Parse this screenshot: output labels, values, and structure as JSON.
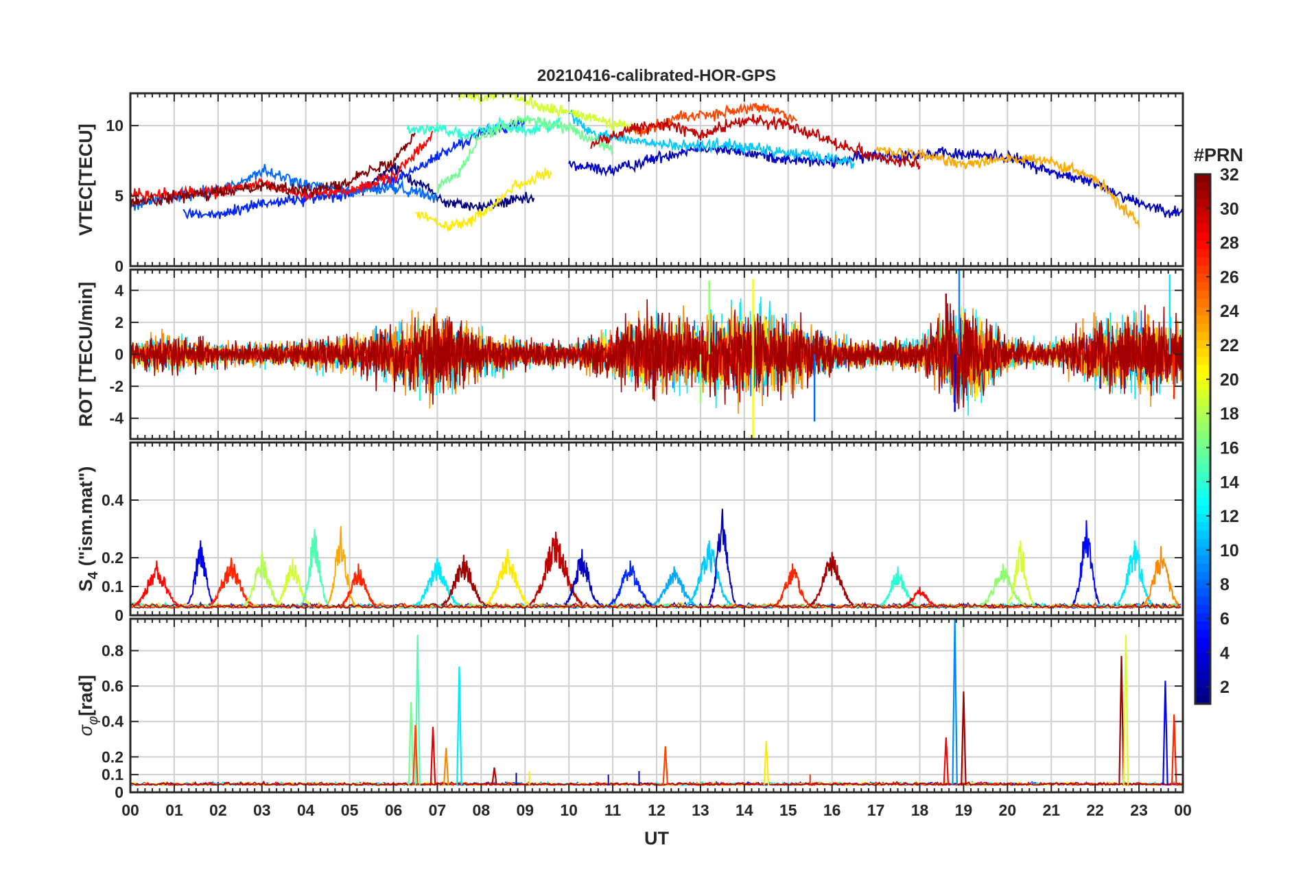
{
  "chart_data": [
    {
      "type": "line",
      "title": "20210416-calibrated-HOR-GPS",
      "ylabel": "VTEC[TECU]",
      "xlim": [
        0,
        24
      ],
      "ylim": [
        0,
        12.3
      ],
      "yticks": [
        0,
        5,
        10
      ],
      "grid": true,
      "series_note": "one trace per GPS PRN (1-32), colored by PRN",
      "series": [
        {
          "name": "PRN 1",
          "prn": 1,
          "x": [
            5.3,
            6,
            6.8,
            7.2,
            8,
            8.6,
            9.2
          ],
          "y": [
            5.4,
            7,
            5.5,
            4.5,
            4.2,
            4.6,
            4.8
          ]
        },
        {
          "name": "PRN 3",
          "prn": 3,
          "x": [
            10,
            11,
            12,
            13,
            14,
            15,
            16,
            17,
            18.5,
            20,
            21,
            22,
            23,
            24
          ],
          "y": [
            7.2,
            6.8,
            7.7,
            8.5,
            8.1,
            7.6,
            7.4,
            7.9,
            8.0,
            7.8,
            6.7,
            5.9,
            4.5,
            3.7
          ]
        },
        {
          "name": "PRN 6",
          "prn": 6,
          "x": [
            1.2,
            2,
            3,
            4,
            5,
            6,
            7,
            8,
            9
          ],
          "y": [
            3.8,
            3.6,
            4.5,
            4.8,
            5.2,
            6,
            7.8,
            9.5,
            10.2
          ]
        },
        {
          "name": "PRN 8",
          "prn": 8,
          "x": [
            0,
            0.8,
            1.5,
            2.3,
            3,
            4,
            5,
            6,
            7
          ],
          "y": [
            4.3,
            4.8,
            5.2,
            5.6,
            6.8,
            5.8,
            5.3,
            5.6,
            5.0
          ]
        },
        {
          "name": "PRN 11",
          "prn": 11,
          "x": [
            10,
            10.5,
            11.5,
            12.5,
            13.5,
            14.5,
            15.5,
            16.5
          ],
          "y": [
            10.8,
            9.5,
            8.9,
            8.5,
            8.7,
            8.2,
            7.9,
            7.4
          ]
        },
        {
          "name": "PRN 14",
          "prn": 14,
          "x": [
            6.3,
            7,
            7.7,
            8.4,
            9.1,
            9.8
          ],
          "y": [
            9.6,
            9.9,
            9.2,
            10.1,
            9.6,
            10.3
          ]
        },
        {
          "name": "PRN 16",
          "prn": 16,
          "x": [
            7,
            7.5,
            8,
            9,
            10,
            11
          ],
          "y": [
            5.5,
            6.8,
            9.3,
            10.5,
            9.8,
            8.4
          ]
        },
        {
          "name": "PRN 19",
          "prn": 19,
          "x": [
            7.5,
            8,
            8.5,
            9.5,
            10.5,
            11.5
          ],
          "y": [
            12.2,
            12.0,
            12.3,
            11.2,
            10.6,
            9.8
          ]
        },
        {
          "name": "PRN 21",
          "prn": 21,
          "x": [
            6.5,
            7.3,
            8,
            8.8,
            9.6
          ],
          "y": [
            3.8,
            2.7,
            3.6,
            5.8,
            6.6
          ]
        },
        {
          "name": "PRN 23",
          "prn": 23,
          "x": [
            17,
            18,
            19,
            20,
            21,
            22,
            23
          ],
          "y": [
            8.2,
            7.9,
            7.3,
            7.7,
            7.4,
            6.2,
            3.0
          ]
        },
        {
          "name": "PRN 26",
          "prn": 26,
          "x": [
            11.5,
            12.5,
            13.5,
            14.5,
            15.2
          ],
          "y": [
            9.5,
            10.6,
            10.9,
            11.3,
            10.5
          ]
        },
        {
          "name": "PRN 28",
          "prn": 28,
          "x": [
            0,
            1,
            2,
            3,
            4,
            5,
            6,
            6.9
          ],
          "y": [
            5.0,
            5.2,
            5.3,
            5.8,
            5.1,
            5.4,
            6.3,
            9.4
          ]
        },
        {
          "name": "PRN 30",
          "prn": 30,
          "x": [
            10.5,
            11.5,
            12.3,
            13,
            14,
            15,
            16,
            17,
            18
          ],
          "y": [
            8.7,
            9.8,
            10.1,
            9.3,
            10.4,
            10.1,
            8.9,
            7.8,
            7.2
          ]
        },
        {
          "name": "PRN 32",
          "prn": 32,
          "x": [
            0,
            1,
            2,
            3,
            4,
            5,
            6,
            6.5
          ],
          "y": [
            4.5,
            4.9,
            5.2,
            5.8,
            5.3,
            6.1,
            7.5,
            9.6
          ]
        }
      ]
    },
    {
      "type": "line",
      "ylabel": "ROT [TECU/min]",
      "xlim": [
        0,
        24
      ],
      "ylim": [
        -5.3,
        5.3
      ],
      "yticks": [
        -4,
        -2,
        0,
        2,
        4
      ],
      "grid": true,
      "envelope_note": "approximate absolute-amplitude envelope of ROT fluctuations per hour, all PRNs",
      "hours": [
        0,
        1,
        2,
        3,
        4,
        5,
        6,
        7,
        8,
        9,
        10,
        11,
        12,
        13,
        14,
        15,
        16,
        17,
        18,
        19,
        20,
        21,
        22,
        23,
        24
      ],
      "amplitude": [
        0.8,
        1.0,
        0.6,
        0.6,
        0.7,
        1.0,
        1.6,
        2.2,
        1.2,
        0.8,
        0.6,
        1.4,
        2.3,
        1.8,
        2.6,
        2.0,
        1.0,
        0.6,
        0.9,
        3.2,
        0.8,
        0.6,
        1.8,
        2.2,
        1.5
      ],
      "spikes": [
        {
          "x": 13.2,
          "y": 4.6,
          "prn": 17
        },
        {
          "x": 14.2,
          "y": 4.7,
          "prn": 20
        },
        {
          "x": 14.2,
          "y": -5.3,
          "prn": 20
        },
        {
          "x": 15.6,
          "y": -4.2,
          "prn": 8
        },
        {
          "x": 18.9,
          "y": 5.3,
          "prn": 9
        },
        {
          "x": 18.6,
          "y": 3.8,
          "prn": 31
        },
        {
          "x": 18.8,
          "y": -3.6,
          "prn": 4
        },
        {
          "x": 23.7,
          "y": 5.0,
          "prn": 12
        },
        {
          "x": 23.8,
          "y": -2.8,
          "prn": 27
        },
        {
          "x": 6.6,
          "y": -2.9,
          "prn": 14
        },
        {
          "x": 13.0,
          "y": -3.1,
          "prn": 17
        }
      ]
    },
    {
      "type": "line",
      "ylabel": "S4 (\"ism.mat\")",
      "ylabel_main": "S",
      "ylabel_sub": "4",
      "ylabel_rest": "(\"ism.mat\")",
      "xlim": [
        0,
        24
      ],
      "ylim": [
        0,
        0.6
      ],
      "yticks": [
        0,
        0.1,
        0.2,
        0.4
      ],
      "grid": true,
      "baseline_note": "background level ~0.02-0.05 for all PRNs",
      "bursts": [
        {
          "center": 0.6,
          "width": 0.5,
          "peak": 0.19,
          "prn": 28
        },
        {
          "center": 1.6,
          "width": 0.3,
          "peak": 0.26,
          "prn": 4
        },
        {
          "center": 2.3,
          "width": 0.5,
          "peak": 0.2,
          "prn": 27
        },
        {
          "center": 3.0,
          "width": 0.4,
          "peak": 0.22,
          "prn": 18
        },
        {
          "center": 3.7,
          "width": 0.4,
          "peak": 0.2,
          "prn": 19
        },
        {
          "center": 4.2,
          "width": 0.3,
          "peak": 0.3,
          "prn": 15
        },
        {
          "center": 4.8,
          "width": 0.3,
          "peak": 0.31,
          "prn": 23
        },
        {
          "center": 5.2,
          "width": 0.4,
          "peak": 0.18,
          "prn": 27
        },
        {
          "center": 7.0,
          "width": 0.5,
          "peak": 0.2,
          "prn": 12
        },
        {
          "center": 7.6,
          "width": 0.5,
          "peak": 0.21,
          "prn": 31
        },
        {
          "center": 8.6,
          "width": 0.5,
          "peak": 0.23,
          "prn": 21
        },
        {
          "center": 9.7,
          "width": 0.6,
          "peak": 0.29,
          "prn": 30
        },
        {
          "center": 10.3,
          "width": 0.4,
          "peak": 0.23,
          "prn": 3
        },
        {
          "center": 11.4,
          "width": 0.5,
          "peak": 0.19,
          "prn": 6
        },
        {
          "center": 12.4,
          "width": 0.5,
          "peak": 0.17,
          "prn": 10
        },
        {
          "center": 13.2,
          "width": 0.5,
          "peak": 0.26,
          "prn": 11
        },
        {
          "center": 13.5,
          "width": 0.3,
          "peak": 0.37,
          "prn": 3
        },
        {
          "center": 15.1,
          "width": 0.4,
          "peak": 0.18,
          "prn": 27
        },
        {
          "center": 16.0,
          "width": 0.5,
          "peak": 0.22,
          "prn": 31
        },
        {
          "center": 17.5,
          "width": 0.4,
          "peak": 0.17,
          "prn": 14
        },
        {
          "center": 18.0,
          "width": 0.4,
          "peak": 0.1,
          "prn": 28
        },
        {
          "center": 19.9,
          "width": 0.5,
          "peak": 0.18,
          "prn": 17
        },
        {
          "center": 20.3,
          "width": 0.3,
          "peak": 0.26,
          "prn": 19
        },
        {
          "center": 21.8,
          "width": 0.3,
          "peak": 0.33,
          "prn": 5
        },
        {
          "center": 22.9,
          "width": 0.4,
          "peak": 0.26,
          "prn": 12
        },
        {
          "center": 23.5,
          "width": 0.4,
          "peak": 0.24,
          "prn": 24
        }
      ]
    },
    {
      "type": "line",
      "ylabel": "σφ[rad]",
      "ylabel_main": "σ",
      "ylabel_sub": "φ",
      "ylabel_rest": "[rad]",
      "xlim": [
        0,
        24
      ],
      "ylim": [
        0,
        0.98
      ],
      "yticks": [
        0,
        0.1,
        0.2,
        0.4,
        0.6,
        0.8
      ],
      "grid": true,
      "xlabel": "UT",
      "xticklabels": [
        "00",
        "01",
        "02",
        "03",
        "04",
        "05",
        "06",
        "07",
        "08",
        "09",
        "10",
        "11",
        "12",
        "13",
        "14",
        "15",
        "16",
        "17",
        "18",
        "19",
        "20",
        "21",
        "22",
        "23",
        "00"
      ],
      "baseline_note": "background level ~0.03-0.05 for all PRNs",
      "spikes": [
        {
          "x": 6.4,
          "y": 0.51,
          "prn": 16
        },
        {
          "x": 6.55,
          "y": 0.89,
          "prn": 15
        },
        {
          "x": 6.5,
          "y": 0.38,
          "prn": 26
        },
        {
          "x": 6.9,
          "y": 0.37,
          "prn": 29
        },
        {
          "x": 7.5,
          "y": 0.71,
          "prn": 12
        },
        {
          "x": 7.2,
          "y": 0.25,
          "prn": 24
        },
        {
          "x": 8.3,
          "y": 0.14,
          "prn": 30
        },
        {
          "x": 12.2,
          "y": 0.26,
          "prn": 26
        },
        {
          "x": 14.5,
          "y": 0.29,
          "prn": 21
        },
        {
          "x": 18.6,
          "y": 0.31,
          "prn": 28
        },
        {
          "x": 18.8,
          "y": 0.98,
          "prn": 9
        },
        {
          "x": 19.0,
          "y": 0.57,
          "prn": 31
        },
        {
          "x": 22.6,
          "y": 0.77,
          "prn": 31
        },
        {
          "x": 22.7,
          "y": 0.89,
          "prn": 19
        },
        {
          "x": 23.6,
          "y": 0.63,
          "prn": 5
        },
        {
          "x": 23.8,
          "y": 0.44,
          "prn": 27
        }
      ]
    }
  ],
  "colorbar": {
    "title": "#PRN",
    "min": 1,
    "max": 32,
    "ticks": [
      2,
      4,
      6,
      8,
      10,
      12,
      14,
      16,
      18,
      20,
      22,
      24,
      26,
      28,
      30,
      32
    ],
    "colormap": "jet"
  }
}
